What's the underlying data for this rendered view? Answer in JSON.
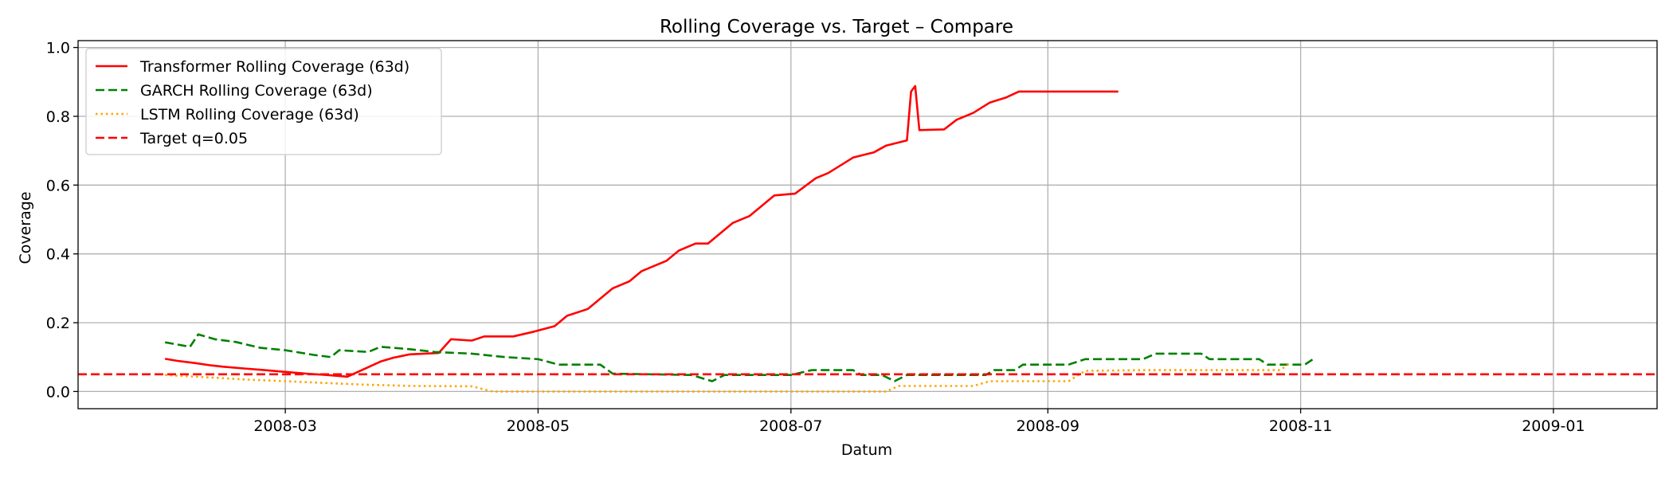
{
  "chart_data": {
    "type": "line",
    "title": "Rolling Coverage vs. Target – Compare",
    "xlabel": "Datum",
    "ylabel": "Coverage",
    "x_type": "date",
    "xlim": [
      "2008-01-11",
      "2009-01-26"
    ],
    "ylim": [
      -0.05,
      1.02
    ],
    "x_ticks": [
      "2008-03-01",
      "2008-05-01",
      "2008-07-01",
      "2008-09-01",
      "2008-11-01",
      "2009-01-01"
    ],
    "x_tick_labels": [
      "2008-03",
      "2008-05",
      "2008-07",
      "2008-09",
      "2008-11",
      "2009-01"
    ],
    "y_ticks": [
      0.0,
      0.2,
      0.4,
      0.6,
      0.8,
      1.0
    ],
    "y_tick_labels": [
      "0.0",
      "0.2",
      "0.4",
      "0.6",
      "0.8",
      "1.0"
    ],
    "grid": true,
    "legend_position": "upper-left",
    "series": [
      {
        "name": "Transformer Rolling Coverage (63d)",
        "color": "#ff0000",
        "style": "solid",
        "points": [
          [
            "2008-02-01",
            0.095
          ],
          [
            "2008-02-04",
            0.089
          ],
          [
            "2008-02-08",
            0.083
          ],
          [
            "2008-02-12",
            0.076
          ],
          [
            "2008-02-15",
            0.072
          ],
          [
            "2008-02-20",
            0.067
          ],
          [
            "2008-02-25",
            0.062
          ],
          [
            "2008-03-01",
            0.057
          ],
          [
            "2008-03-06",
            0.052
          ],
          [
            "2008-03-11",
            0.048
          ],
          [
            "2008-03-16",
            0.043
          ],
          [
            "2008-03-20",
            0.065
          ],
          [
            "2008-03-24",
            0.087
          ],
          [
            "2008-03-27",
            0.098
          ],
          [
            "2008-03-31",
            0.108
          ],
          [
            "2008-04-07",
            0.112
          ],
          [
            "2008-04-10",
            0.152
          ],
          [
            "2008-04-15",
            0.148
          ],
          [
            "2008-04-18",
            0.16
          ],
          [
            "2008-04-25",
            0.16
          ],
          [
            "2008-04-30",
            0.174
          ],
          [
            "2008-05-05",
            0.19
          ],
          [
            "2008-05-08",
            0.22
          ],
          [
            "2008-05-13",
            0.24
          ],
          [
            "2008-05-19",
            0.3
          ],
          [
            "2008-05-23",
            0.32
          ],
          [
            "2008-05-26",
            0.35
          ],
          [
            "2008-06-01",
            0.38
          ],
          [
            "2008-06-04",
            0.41
          ],
          [
            "2008-06-08",
            0.43
          ],
          [
            "2008-06-11",
            0.43
          ],
          [
            "2008-06-17",
            0.49
          ],
          [
            "2008-06-21",
            0.51
          ],
          [
            "2008-06-27",
            0.57
          ],
          [
            "2008-07-02",
            0.575
          ],
          [
            "2008-07-07",
            0.62
          ],
          [
            "2008-07-10",
            0.635
          ],
          [
            "2008-07-14",
            0.665
          ],
          [
            "2008-07-16",
            0.68
          ],
          [
            "2008-07-21",
            0.695
          ],
          [
            "2008-07-24",
            0.715
          ],
          [
            "2008-07-29",
            0.73
          ],
          [
            "2008-08-01",
            0.76
          ],
          [
            "2008-08-07",
            0.762
          ],
          [
            "2008-08-10",
            0.79
          ],
          [
            "2008-08-14",
            0.81
          ],
          [
            "2008-08-18",
            0.84
          ],
          [
            "2008-08-22",
            0.855
          ],
          [
            "2008-08-25",
            0.872
          ],
          [
            "2008-09-04",
            0.872
          ],
          [
            "2008-09-18",
            0.872
          ],
          [
            "2008-07-30",
            0.872
          ],
          [
            "2008-07-31",
            0.888
          ]
        ]
      },
      {
        "name": "GARCH Rolling Coverage (63d)",
        "color": "#008000",
        "style": "dashed",
        "points": [
          [
            "2008-02-01",
            0.143
          ],
          [
            "2008-02-07",
            0.13
          ],
          [
            "2008-02-09",
            0.166
          ],
          [
            "2008-02-13",
            0.152
          ],
          [
            "2008-02-18",
            0.144
          ],
          [
            "2008-02-24",
            0.127
          ],
          [
            "2008-03-01",
            0.12
          ],
          [
            "2008-03-08",
            0.106
          ],
          [
            "2008-03-12",
            0.1
          ],
          [
            "2008-03-14",
            0.12
          ],
          [
            "2008-03-21",
            0.115
          ],
          [
            "2008-03-24",
            0.13
          ],
          [
            "2008-03-31",
            0.123
          ],
          [
            "2008-04-06",
            0.115
          ],
          [
            "2008-04-15",
            0.11
          ],
          [
            "2008-04-23",
            0.1
          ],
          [
            "2008-05-01",
            0.094
          ],
          [
            "2008-05-06",
            0.078
          ],
          [
            "2008-05-16",
            0.078
          ],
          [
            "2008-05-19",
            0.052
          ],
          [
            "2008-06-07",
            0.048
          ],
          [
            "2008-06-12",
            0.03
          ],
          [
            "2008-06-15",
            0.048
          ],
          [
            "2008-07-01",
            0.048
          ],
          [
            "2008-07-06",
            0.062
          ],
          [
            "2008-07-16",
            0.062
          ],
          [
            "2008-07-18",
            0.048
          ],
          [
            "2008-07-23",
            0.048
          ],
          [
            "2008-07-26",
            0.03
          ],
          [
            "2008-07-29",
            0.048
          ],
          [
            "2008-08-17",
            0.048
          ],
          [
            "2008-08-19",
            0.062
          ],
          [
            "2008-08-24",
            0.062
          ],
          [
            "2008-08-26",
            0.078
          ],
          [
            "2008-09-06",
            0.078
          ],
          [
            "2008-09-10",
            0.094
          ],
          [
            "2008-09-24",
            0.094
          ],
          [
            "2008-09-27",
            0.11
          ],
          [
            "2008-10-08",
            0.11
          ],
          [
            "2008-10-10",
            0.094
          ],
          [
            "2008-10-22",
            0.094
          ],
          [
            "2008-10-24",
            0.078
          ],
          [
            "2008-11-02",
            0.078
          ],
          [
            "2008-11-04",
            0.094
          ]
        ]
      },
      {
        "name": "LSTM Rolling Coverage (63d)",
        "color": "#ffa500",
        "style": "dotted",
        "points": [
          [
            "2008-02-01",
            0.048
          ],
          [
            "2008-02-10",
            0.042
          ],
          [
            "2008-02-20",
            0.035
          ],
          [
            "2008-03-01",
            0.03
          ],
          [
            "2008-03-10",
            0.025
          ],
          [
            "2008-03-20",
            0.02
          ],
          [
            "2008-04-01",
            0.016
          ],
          [
            "2008-04-15",
            0.015
          ],
          [
            "2008-04-20",
            0.0
          ],
          [
            "2008-05-01",
            0.0
          ],
          [
            "2008-06-01",
            0.0
          ],
          [
            "2008-06-10",
            0.0
          ],
          [
            "2008-07-01",
            0.0
          ],
          [
            "2008-07-06",
            0.0
          ],
          [
            "2008-07-24",
            0.0
          ],
          [
            "2008-07-27",
            0.016
          ],
          [
            "2008-08-14",
            0.016
          ],
          [
            "2008-08-18",
            0.03
          ],
          [
            "2008-09-06",
            0.03
          ],
          [
            "2008-09-10",
            0.06
          ],
          [
            "2008-09-24",
            0.062
          ],
          [
            "2008-10-27",
            0.062
          ],
          [
            "2008-10-29",
            0.078
          ]
        ]
      },
      {
        "name": "Target q=0.05",
        "color": "#ff0000",
        "style": "dashed",
        "points": [
          [
            "2008-01-11",
            0.05
          ],
          [
            "2009-01-26",
            0.05
          ]
        ]
      }
    ]
  }
}
